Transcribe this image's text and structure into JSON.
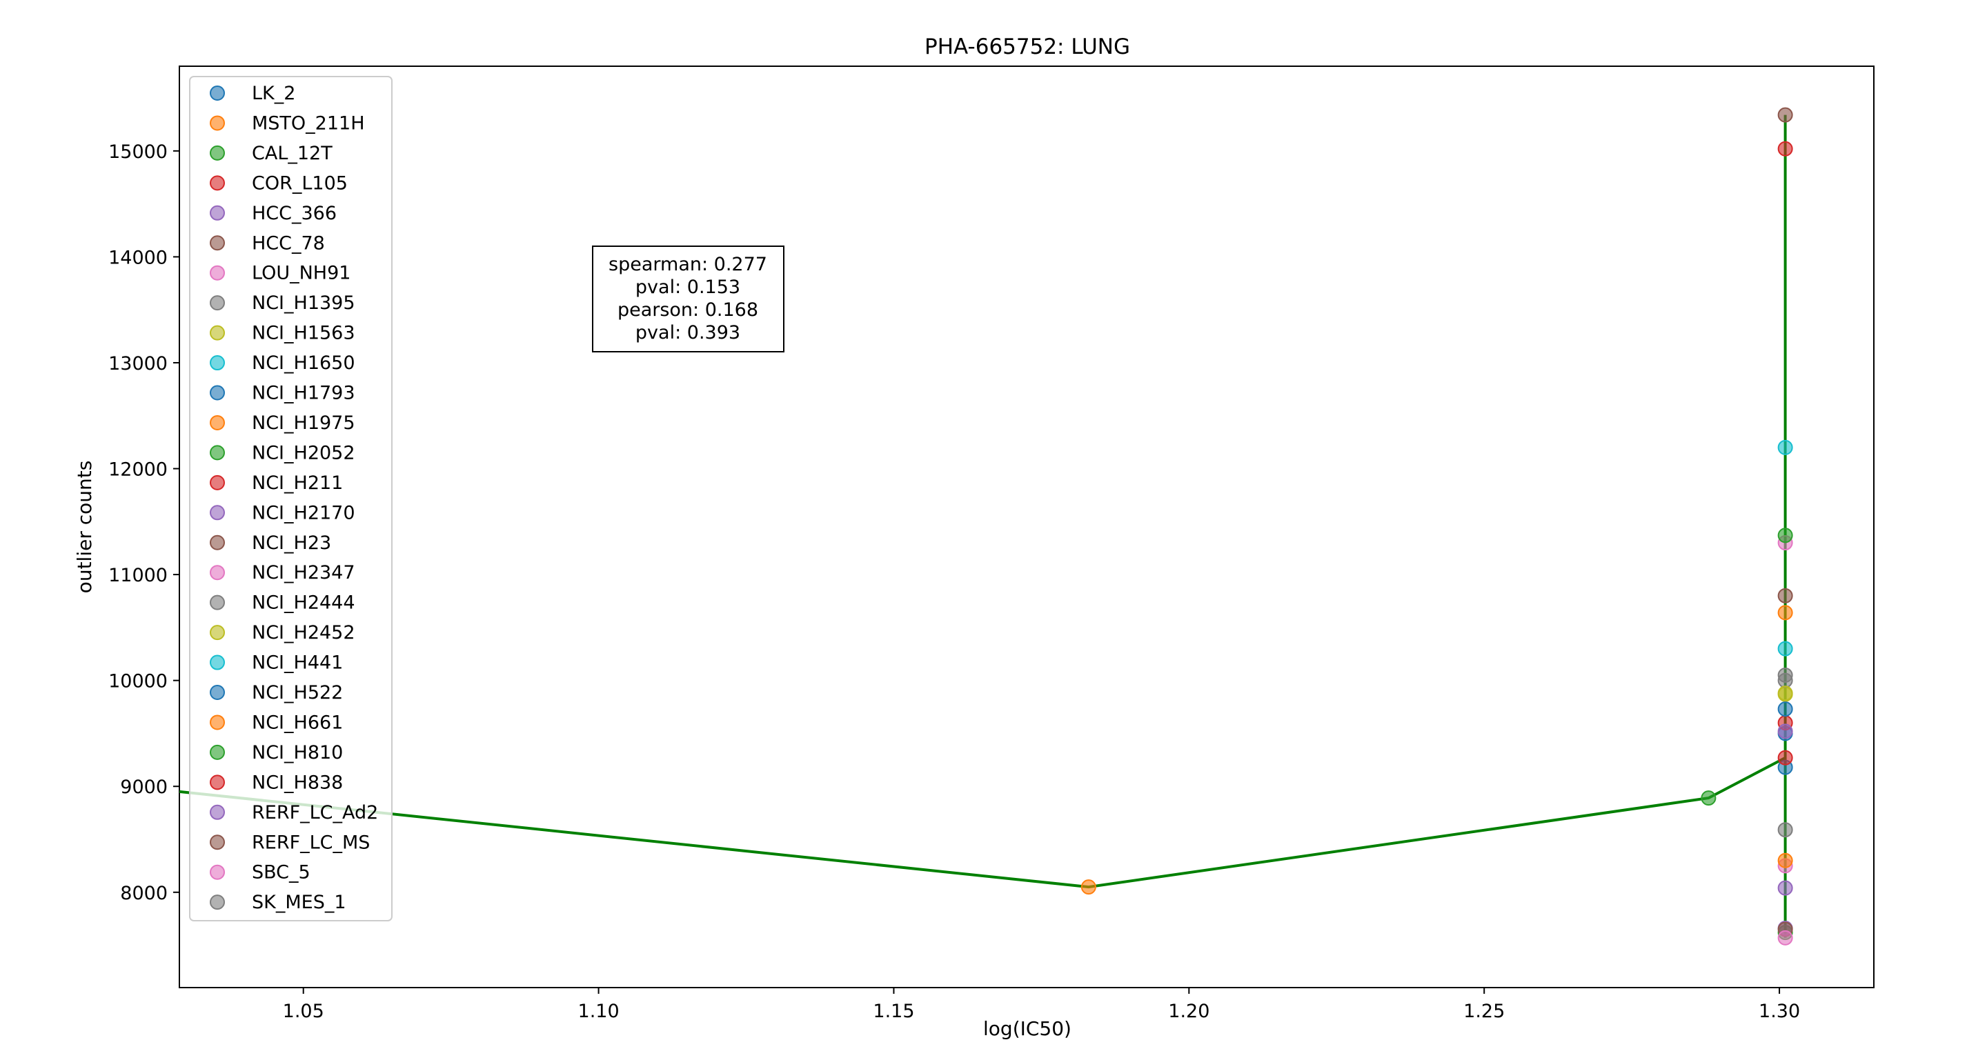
{
  "chart_data": {
    "type": "scatter",
    "title": "PHA-665752: LUNG",
    "xlabel": "log(IC50)",
    "ylabel": "outlier counts",
    "xlim": [
      1.029,
      1.316
    ],
    "ylim": [
      7100,
      15800
    ],
    "x_ticks": [
      1.05,
      1.1,
      1.15,
      1.2,
      1.25,
      1.3
    ],
    "x_tick_labels": [
      "1.05",
      "1.10",
      "1.15",
      "1.20",
      "1.25",
      "1.30"
    ],
    "y_ticks": [
      8000,
      9000,
      10000,
      11000,
      12000,
      13000,
      14000,
      15000
    ],
    "y_tick_labels": [
      "8000",
      "9000",
      "10000",
      "11000",
      "12000",
      "13000",
      "14000",
      "15000"
    ],
    "grid": false,
    "legend_position": "upper-left",
    "stats_box": [
      "spearman: 0.277",
      "pval: 0.153",
      "pearson: 0.168",
      "pval: 0.393"
    ],
    "series": [
      {
        "name": "LK_2",
        "color": "#1f77b4",
        "x": 1.301,
        "y": 9500
      },
      {
        "name": "MSTO_211H",
        "color": "#ff7f0e",
        "x": 1.183,
        "y": 8050
      },
      {
        "name": "CAL_12T",
        "color": "#2ca02c",
        "x": 1.301,
        "y": 7620
      },
      {
        "name": "COR_L105",
        "color": "#d62728",
        "x": 1.301,
        "y": 15020
      },
      {
        "name": "HCC_366",
        "color": "#9467bd",
        "x": 1.301,
        "y": 8040
      },
      {
        "name": "HCC_78",
        "color": "#8c564b",
        "x": 1.301,
        "y": 15340
      },
      {
        "name": "LOU_NH91",
        "color": "#e377c2",
        "x": 1.301,
        "y": 11300
      },
      {
        "name": "NCI_H1395",
        "color": "#7f7f7f",
        "x": 1.301,
        "y": 10050
      },
      {
        "name": "NCI_H1563",
        "color": "#bcbd22",
        "x": 1.301,
        "y": 9870
      },
      {
        "name": "NCI_H1650",
        "color": "#17becf",
        "x": 1.301,
        "y": 12200
      },
      {
        "name": "NCI_H1793",
        "color": "#1f77b4",
        "x": 1.301,
        "y": 9180
      },
      {
        "name": "NCI_H1975",
        "color": "#ff7f0e",
        "x": 1.301,
        "y": 10640
      },
      {
        "name": "NCI_H2052",
        "color": "#2ca02c",
        "x": 1.301,
        "y": 11370
      },
      {
        "name": "NCI_H211",
        "color": "#d62728",
        "x": 1.301,
        "y": 9600
      },
      {
        "name": "NCI_H2170",
        "color": "#9467bd",
        "x": 1.301,
        "y": 7660
      },
      {
        "name": "NCI_H23",
        "color": "#8c564b",
        "x": 1.301,
        "y": 10800
      },
      {
        "name": "NCI_H2347",
        "color": "#e377c2",
        "x": 1.301,
        "y": 8250
      },
      {
        "name": "NCI_H2444",
        "color": "#7f7f7f",
        "x": 1.301,
        "y": 10000
      },
      {
        "name": "NCI_H2452",
        "color": "#bcbd22",
        "x": 1.301,
        "y": 9880
      },
      {
        "name": "NCI_H441",
        "color": "#17becf",
        "x": 1.301,
        "y": 10300
      },
      {
        "name": "NCI_H522",
        "color": "#1f77b4",
        "x": 1.301,
        "y": 9730
      },
      {
        "name": "NCI_H661",
        "color": "#ff7f0e",
        "x": 1.301,
        "y": 8300
      },
      {
        "name": "NCI_H810",
        "color": "#2ca02c",
        "x": 1.288,
        "y": 8890
      },
      {
        "name": "NCI_H838",
        "color": "#d62728",
        "x": 1.301,
        "y": 9270
      },
      {
        "name": "RERF_LC_Ad2",
        "color": "#9467bd",
        "x": 1.301,
        "y": 9520
      },
      {
        "name": "RERF_LC_MS",
        "color": "#8c564b",
        "x": 1.301,
        "y": 7650
      },
      {
        "name": "SBC_5",
        "color": "#e377c2",
        "x": 1.301,
        "y": 7570
      },
      {
        "name": "SK_MES_1",
        "color": "#7f7f7f",
        "x": 1.301,
        "y": 8590
      }
    ],
    "trend_line": {
      "color": "#008000",
      "points": [
        [
          1.029,
          8950
        ],
        [
          1.183,
          8050
        ],
        [
          1.288,
          8890
        ],
        [
          1.301,
          9270
        ],
        [
          1.301,
          7570
        ],
        [
          1.301,
          15340
        ]
      ]
    }
  }
}
